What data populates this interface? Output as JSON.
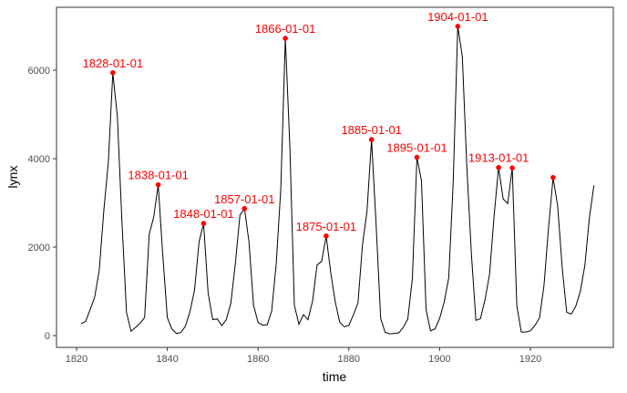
{
  "chart_data": {
    "type": "line",
    "title": "",
    "xlabel": "time",
    "ylabel": "lynx",
    "xlim": [
      1816.5,
      1939
    ],
    "ylim": [
      -250,
      7300
    ],
    "xticks": [
      1820,
      1840,
      1860,
      1880,
      1900,
      1920
    ],
    "yticks": [
      0,
      2000,
      4000,
      6000
    ],
    "x_start": 1821,
    "values": [
      269,
      321,
      585,
      871,
      1475,
      2821,
      3928,
      5943,
      4950,
      2577,
      523,
      98,
      184,
      279,
      409,
      2285,
      2685,
      3409,
      1824,
      409,
      151,
      45,
      68,
      213,
      546,
      1033,
      2129,
      2536,
      957,
      361,
      377,
      225,
      360,
      731,
      1638,
      2725,
      2871,
      2119,
      684,
      299,
      236,
      245,
      552,
      1623,
      3311,
      6721,
      4254,
      687,
      255,
      473,
      358,
      784,
      1594,
      1676,
      2251,
      1426,
      756,
      299,
      201,
      229,
      469,
      736,
      2042,
      2811,
      4431,
      2511,
      389,
      73,
      39,
      49,
      59,
      188,
      377,
      1292,
      4031,
      3495,
      587,
      105,
      153,
      387,
      758,
      1307,
      3465,
      6991,
      6313,
      3794,
      1836,
      345,
      382,
      808,
      1388,
      2713,
      3800,
      3091,
      2985,
      3790,
      674,
      81,
      80,
      108,
      229,
      399,
      1132,
      2432,
      3574,
      2935,
      1537,
      529,
      485,
      662,
      1000,
      1590,
      2657,
      3396
    ],
    "peaks": [
      {
        "year": 1828,
        "value": 5943,
        "label": "1828-01-01"
      },
      {
        "year": 1838,
        "value": 3409,
        "label": "1838-01-01"
      },
      {
        "year": 1848,
        "value": 2536,
        "label": "1848-01-01"
      },
      {
        "year": 1857,
        "value": 2871,
        "label": "1857-01-01"
      },
      {
        "year": 1866,
        "value": 6721,
        "label": "1866-01-01"
      },
      {
        "year": 1875,
        "value": 2251,
        "label": "1875-01-01"
      },
      {
        "year": 1885,
        "value": 4431,
        "label": "1885-01-01"
      },
      {
        "year": 1895,
        "value": 4031,
        "label": "1895-01-01"
      },
      {
        "year": 1904,
        "value": 6991,
        "label": "1904-01-01"
      },
      {
        "year": 1913,
        "value": 3800,
        "label": "1913-01-01"
      },
      {
        "year": 1916,
        "value": 3790,
        "label": ""
      },
      {
        "year": 1925,
        "value": 3574,
        "label": ""
      }
    ],
    "line_color": "#000000",
    "peak_color": "#ff0000",
    "grid": false
  }
}
